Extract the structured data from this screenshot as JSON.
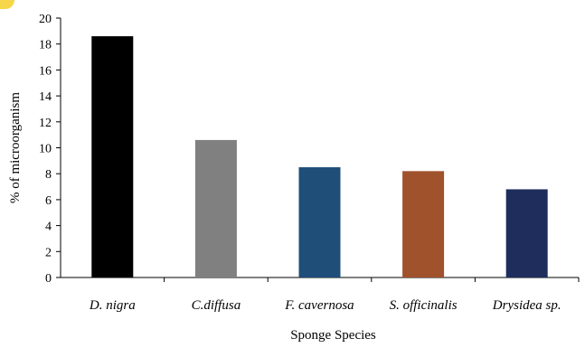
{
  "chart_data": {
    "type": "bar",
    "title": "",
    "xlabel": "Sponge Species",
    "ylabel": "% of microorganism",
    "ylim": [
      0,
      20
    ],
    "yticks": [
      0,
      2,
      4,
      6,
      8,
      10,
      12,
      14,
      16,
      18,
      20
    ],
    "categories": [
      "D. nigra",
      "C.diffusa",
      "F. cavernosa",
      "S. officinalis",
      "Drysidea sp."
    ],
    "values": [
      18.6,
      10.6,
      8.5,
      8.2,
      6.8
    ],
    "colors": [
      "#000000",
      "#808080",
      "#1f4e79",
      "#a0522d",
      "#1f2d5c"
    ],
    "grid": false,
    "legend": "none"
  }
}
